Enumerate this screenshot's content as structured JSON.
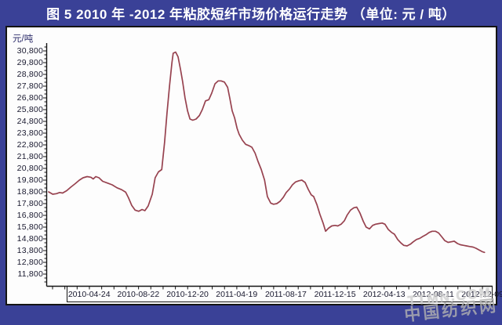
{
  "title": "图 5  2010 年 -2012 年粘胶短纤市场价格运行走势 （单位: 元 / 吨）",
  "watermark": {
    "line1": "TTMN.COM",
    "line2": "中国纺织网"
  },
  "colors": {
    "titlebar_bg": "#3a4197",
    "panel_bg": "#fdfdfd",
    "axis": "#141414",
    "line": "#97424f",
    "watermark": "#b5b5b5"
  },
  "chart_data": {
    "type": "line",
    "title": "2010年-2012年粘胶短纤市场价格运行走势",
    "unit_label": "元/吨",
    "ylabel": "元/吨",
    "ylim": [
      11800,
      30800
    ],
    "y_tick_step": 1000,
    "grid": false,
    "legend": "none",
    "y_ticks": [
      30800,
      29800,
      28800,
      27800,
      26800,
      25800,
      24800,
      23800,
      22800,
      21800,
      20800,
      19800,
      18800,
      17800,
      16800,
      15800,
      14800,
      13800,
      12800,
      11800
    ],
    "x_tick_labels": [
      "2010-04-24",
      "2010-08-22",
      "2010-12-20",
      "2011-04-19",
      "2011-08-17",
      "2011-12-15",
      "2012-04-13",
      "2012-08-11",
      "2012-12-09"
    ],
    "series": [
      {
        "name": "粘胶短纤市场价格",
        "color": "#97424f",
        "x": [
          "2010-01-15",
          "2010-01-25",
          "2010-02-03",
          "2010-02-11",
          "2010-02-18",
          "2010-02-28",
          "2010-03-10",
          "2010-03-21",
          "2010-03-31",
          "2010-04-09",
          "2010-04-19",
          "2010-04-28",
          "2010-05-04",
          "2010-05-10",
          "2010-05-18",
          "2010-05-27",
          "2010-06-08",
          "2010-06-19",
          "2010-07-01",
          "2010-07-12",
          "2010-07-22",
          "2010-07-29",
          "2010-08-06",
          "2010-08-14",
          "2010-08-23",
          "2010-08-31",
          "2010-09-07",
          "2010-09-15",
          "2010-09-25",
          "2010-10-02",
          "2010-10-10",
          "2010-10-18",
          "2010-10-25",
          "2010-10-31",
          "2010-11-06",
          "2010-11-12",
          "2010-11-15",
          "2010-11-21",
          "2010-11-27",
          "2010-12-03",
          "2010-12-08",
          "2010-12-14",
          "2010-12-20",
          "2010-12-26",
          "2011-01-02",
          "2011-01-10",
          "2011-01-18",
          "2011-01-25",
          "2011-02-02",
          "2011-02-10",
          "2011-02-17",
          "2011-02-25",
          "2011-03-05",
          "2011-03-12",
          "2011-03-20",
          "2011-03-28",
          "2011-04-02",
          "2011-04-08",
          "2011-04-14",
          "2011-04-20",
          "2011-04-25",
          "2011-05-03",
          "2011-05-11",
          "2011-05-18",
          "2011-05-26",
          "2011-06-03",
          "2011-06-10",
          "2011-06-18",
          "2011-06-26",
          "2011-07-03",
          "2011-07-11",
          "2011-07-18",
          "2011-07-26",
          "2011-08-03",
          "2011-08-11",
          "2011-08-18",
          "2011-08-26",
          "2011-09-02",
          "2011-09-10",
          "2011-09-18",
          "2011-09-25",
          "2011-10-03",
          "2011-10-11",
          "2011-10-18",
          "2011-10-24",
          "2011-11-01",
          "2011-11-08",
          "2011-11-16",
          "2011-11-22",
          "2011-11-29",
          "2011-12-07",
          "2011-12-15",
          "2011-12-22",
          "2011-12-30",
          "2012-01-07",
          "2012-01-14",
          "2012-01-22",
          "2012-01-30",
          "2012-02-06",
          "2012-02-14",
          "2012-02-22",
          "2012-02-29",
          "2012-03-08",
          "2012-03-16",
          "2012-03-23",
          "2012-03-31",
          "2012-04-08",
          "2012-04-15",
          "2012-04-23",
          "2012-05-01",
          "2012-05-08",
          "2012-05-16",
          "2012-05-24",
          "2012-05-31",
          "2012-06-08",
          "2012-06-16",
          "2012-06-23",
          "2012-07-01",
          "2012-07-09",
          "2012-07-16",
          "2012-07-24",
          "2012-08-01",
          "2012-08-08",
          "2012-08-16",
          "2012-08-24",
          "2012-08-31",
          "2012-09-08",
          "2012-09-16",
          "2012-09-23",
          "2012-10-01",
          "2012-10-09",
          "2012-10-16",
          "2012-10-24",
          "2012-10-31",
          "2012-11-08",
          "2012-11-16",
          "2012-11-23",
          "2012-12-01",
          "2012-12-09",
          "2012-12-14"
        ],
        "y": [
          18800,
          18600,
          18650,
          18750,
          18700,
          18900,
          19200,
          19500,
          19800,
          20000,
          20100,
          20050,
          19900,
          20100,
          20000,
          19700,
          19550,
          19400,
          19150,
          18990,
          18770,
          18300,
          17640,
          17250,
          17150,
          17300,
          17200,
          17600,
          18600,
          20000,
          20500,
          20700,
          23000,
          25500,
          27800,
          29800,
          30600,
          30700,
          30300,
          29200,
          28200,
          26800,
          25700,
          25000,
          24900,
          25000,
          25300,
          25800,
          26550,
          26650,
          27200,
          28000,
          28250,
          28250,
          28150,
          27700,
          26800,
          25700,
          25100,
          24200,
          23700,
          23200,
          22850,
          22750,
          22600,
          22100,
          21400,
          20700,
          19800,
          18400,
          17850,
          17750,
          17800,
          18000,
          18350,
          18750,
          19050,
          19400,
          19650,
          19750,
          19800,
          19600,
          19000,
          18550,
          18400,
          17700,
          16900,
          16150,
          15450,
          15700,
          15900,
          15950,
          15900,
          16050,
          16350,
          16850,
          17250,
          17450,
          17500,
          17000,
          16300,
          15800,
          15650,
          15950,
          16050,
          16100,
          16150,
          16050,
          15600,
          15350,
          15200,
          14750,
          14450,
          14250,
          14200,
          14350,
          14550,
          14750,
          14850,
          15000,
          15150,
          15350,
          15450,
          15450,
          15300,
          15000,
          14650,
          14500,
          14550,
          14600,
          14400,
          14300,
          14250,
          14200,
          14150,
          14100,
          14000,
          13850,
          13700,
          13650
        ]
      }
    ]
  }
}
